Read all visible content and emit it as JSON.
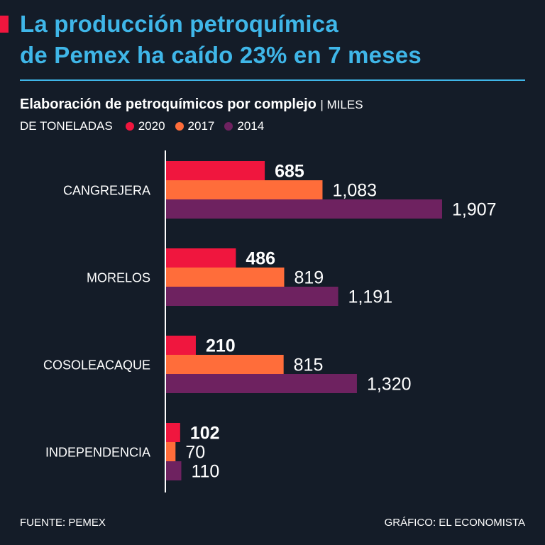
{
  "headline": {
    "line1": "La producción petroquímica",
    "line2": "de Pemex ha caído 23% en 7 meses"
  },
  "subtitle": {
    "bold": "Elaboración de petroquímicos por complejo",
    "unit_part1": "| MILES",
    "unit_part2": "DE TONELADAS"
  },
  "colors": {
    "background": "#141c28",
    "headline": "#3fb6e8",
    "s2020": "#f0163e",
    "s2017": "#ff6d3a",
    "s2014": "#6e2260"
  },
  "chart_data": {
    "type": "bar",
    "orientation": "horizontal",
    "categories": [
      "CANGREJERA",
      "MORELOS",
      "COSOLEACAQUE",
      "INDEPENDENCIA"
    ],
    "series": [
      {
        "name": "2020",
        "color": "#f0163e",
        "values": [
          685,
          486,
          210,
          102
        ],
        "labels": [
          "685",
          "486",
          "210",
          "102"
        ]
      },
      {
        "name": "2017",
        "color": "#ff6d3a",
        "values": [
          1083,
          819,
          815,
          70
        ],
        "labels": [
          "1,083",
          "819",
          "815",
          "70"
        ]
      },
      {
        "name": "2014",
        "color": "#6e2260",
        "values": [
          1907,
          1191,
          1320,
          110
        ],
        "labels": [
          "1,907",
          "1,191",
          "1,320",
          "110"
        ]
      }
    ],
    "legend_position": "top-left",
    "grid": false
  },
  "footer": {
    "source": "FUENTE: PEMEX",
    "credit": "GRÁFICO: EL ECONOMISTA"
  }
}
